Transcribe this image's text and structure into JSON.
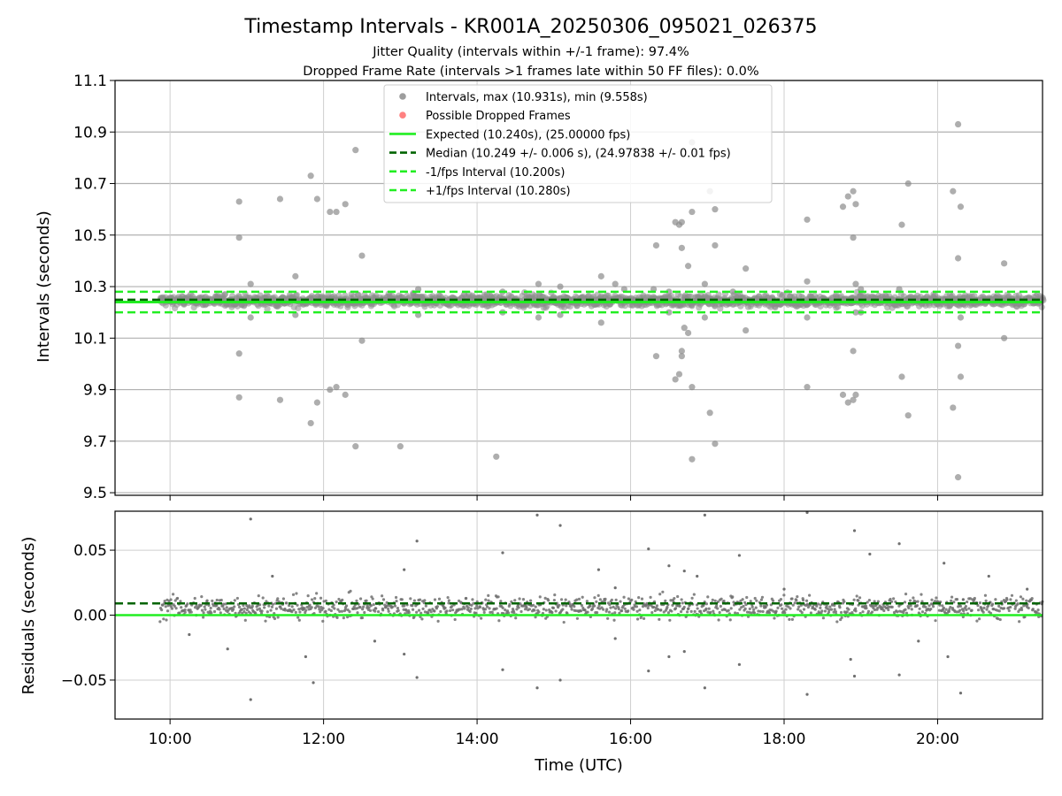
{
  "chart_data": [
    {
      "type": "scatter",
      "panel": "intervals",
      "title": "Timestamp Intervals - KR001A_20250306_095021_026375",
      "subtitle_lines": [
        "Jitter Quality (intervals within +/-1 frame): 97.4%",
        "Dropped Frame Rate (intervals >1 frames late within 50 FF files): 0.0%"
      ],
      "ylabel": "Intervals (seconds)",
      "xlabel": "",
      "xlim": [
        "09:17",
        "21:22"
      ],
      "ylim": [
        9.49,
        11.1
      ],
      "y_ticks": [
        "11.1",
        "10.9",
        "10.7",
        "10.5",
        "10.3",
        "10.1",
        "9.9",
        "9.7",
        "9.5"
      ],
      "grid": true,
      "legend": {
        "placement": "top-center",
        "entries": [
          {
            "label": "Intervals, max (10.931s), min (9.558s)",
            "marker": "circle",
            "color": "#8c8c8c"
          },
          {
            "label": "Possible Dropped Frames",
            "marker": "circle",
            "color": "#ff6b6b"
          },
          {
            "label": "Expected (10.240s), (25.00000 fps)",
            "line": "solid",
            "color": "#22ee22"
          },
          {
            "label": "Median (10.249 +/- 0.006 s), (24.97838 +/- 0.01 fps)",
            "line": "dashed",
            "color": "#006400"
          },
          {
            "label": "-1/fps Interval (10.200s)",
            "line": "dashed",
            "color": "#22ee22"
          },
          {
            "label": "+1/fps Interval (10.280s)",
            "line": "dashed",
            "color": "#22ee22"
          }
        ]
      },
      "reference_lines": {
        "expected": 10.24,
        "median": 10.249,
        "minus_1fps": 10.2,
        "plus_1fps": 10.28
      },
      "cluster": {
        "x_start": "09:52",
        "x_end": "21:22",
        "center": 10.245,
        "spread": 0.022
      },
      "series": [
        {
          "marker_color": "#8c8c8c",
          "points": [
            [
              "10:54",
              10.63
            ],
            [
              "10:54",
              10.49
            ],
            [
              "10:54",
              10.04
            ],
            [
              "10:54",
              9.87
            ],
            [
              "11:03",
              10.31
            ],
            [
              "11:03",
              10.18
            ],
            [
              "11:26",
              10.64
            ],
            [
              "11:26",
              9.86
            ],
            [
              "11:38",
              10.34
            ],
            [
              "11:38",
              10.19
            ],
            [
              "11:50",
              10.73
            ],
            [
              "11:50",
              9.77
            ],
            [
              "11:55",
              10.64
            ],
            [
              "11:55",
              9.85
            ],
            [
              "12:05",
              10.59
            ],
            [
              "12:05",
              9.9
            ],
            [
              "12:10",
              10.59
            ],
            [
              "12:10",
              9.91
            ],
            [
              "12:17",
              10.62
            ],
            [
              "12:17",
              9.88
            ],
            [
              "12:25",
              10.83
            ],
            [
              "12:25",
              9.68
            ],
            [
              "12:30",
              10.42
            ],
            [
              "12:30",
              10.09
            ],
            [
              "13:00",
              9.68
            ],
            [
              "13:10",
              10.27
            ],
            [
              "13:14",
              10.29
            ],
            [
              "13:14",
              10.19
            ],
            [
              "14:15",
              9.64
            ],
            [
              "14:20",
              10.28
            ],
            [
              "14:20",
              10.2
            ],
            [
              "14:48",
              10.31
            ],
            [
              "14:48",
              10.18
            ],
            [
              "15:05",
              10.3
            ],
            [
              "15:05",
              10.19
            ],
            [
              "15:37",
              10.34
            ],
            [
              "15:37",
              10.16
            ],
            [
              "15:48",
              10.31
            ],
            [
              "16:18",
              10.29
            ],
            [
              "16:20",
              10.46
            ],
            [
              "16:20",
              10.03
            ],
            [
              "16:30",
              10.28
            ],
            [
              "16:30",
              10.2
            ],
            [
              "16:35",
              10.55
            ],
            [
              "16:35",
              9.94
            ],
            [
              "16:38",
              10.54
            ],
            [
              "16:38",
              9.96
            ],
            [
              "16:40",
              10.55
            ],
            [
              "16:40",
              10.45
            ],
            [
              "16:40",
              10.05
            ],
            [
              "16:40",
              10.03
            ],
            [
              "16:42",
              10.14
            ],
            [
              "16:45",
              10.38
            ],
            [
              "16:45",
              10.12
            ],
            [
              "16:48",
              10.59
            ],
            [
              "16:48",
              10.86
            ],
            [
              "16:48",
              9.91
            ],
            [
              "16:48",
              9.63
            ],
            [
              "16:58",
              10.31
            ],
            [
              "16:58",
              10.18
            ],
            [
              "17:02",
              10.67
            ],
            [
              "17:02",
              9.81
            ],
            [
              "17:06",
              10.6
            ],
            [
              "17:06",
              10.46
            ],
            [
              "17:06",
              9.69
            ],
            [
              "17:20",
              10.28
            ],
            [
              "17:30",
              10.37
            ],
            [
              "17:30",
              10.13
            ],
            [
              "18:18",
              10.56
            ],
            [
              "18:18",
              10.32
            ],
            [
              "18:18",
              10.18
            ],
            [
              "18:18",
              9.91
            ],
            [
              "18:46",
              10.61
            ],
            [
              "18:46",
              9.88
            ],
            [
              "18:50",
              10.65
            ],
            [
              "18:50",
              9.85
            ],
            [
              "18:54",
              10.67
            ],
            [
              "18:54",
              10.49
            ],
            [
              "18:54",
              10.05
            ],
            [
              "18:54",
              9.86
            ],
            [
              "18:56",
              10.62
            ],
            [
              "18:56",
              10.31
            ],
            [
              "18:56",
              10.2
            ],
            [
              "18:56",
              9.88
            ],
            [
              "19:00",
              10.29
            ],
            [
              "19:00",
              10.2
            ],
            [
              "19:32",
              10.54
            ],
            [
              "19:32",
              9.95
            ],
            [
              "19:37",
              10.7
            ],
            [
              "19:37",
              9.8
            ],
            [
              "20:12",
              10.67
            ],
            [
              "20:12",
              9.83
            ],
            [
              "20:16",
              10.93
            ],
            [
              "20:16",
              10.41
            ],
            [
              "20:16",
              10.07
            ],
            [
              "20:16",
              9.56
            ],
            [
              "20:18",
              10.61
            ],
            [
              "20:18",
              10.18
            ],
            [
              "20:18",
              9.95
            ],
            [
              "20:52",
              10.39
            ],
            [
              "20:52",
              10.1
            ],
            [
              "19:30",
              10.29
            ],
            [
              "15:55",
              10.29
            ],
            [
              "13:50",
              10.27
            ]
          ]
        }
      ]
    },
    {
      "type": "scatter",
      "panel": "residuals",
      "ylabel": "Residuals (seconds)",
      "xlabel": "Time (UTC)",
      "xlim": [
        "09:17",
        "21:22"
      ],
      "ylim": [
        -0.08,
        0.08
      ],
      "x_ticks": [
        "10:00",
        "12:00",
        "14:00",
        "16:00",
        "18:00",
        "20:00"
      ],
      "y_ticks": [
        "0.05",
        "0.00",
        "−0.05"
      ],
      "grid": true,
      "reference_lines": {
        "zero": 0.0,
        "median_residual": 0.009
      },
      "cluster": {
        "x_start": "09:52",
        "x_end": "21:22",
        "center": 0.006,
        "spread": 0.008
      },
      "series": [
        {
          "marker_color": "#707070",
          "points": [
            [
              "11:03",
              0.074
            ],
            [
              "11:03",
              -0.065
            ],
            [
              "11:52",
              -0.052
            ],
            [
              "11:46",
              -0.032
            ],
            [
              "13:03",
              0.035
            ],
            [
              "13:03",
              -0.03
            ],
            [
              "13:13",
              0.057
            ],
            [
              "13:13",
              -0.048
            ],
            [
              "14:20",
              0.048
            ],
            [
              "14:20",
              -0.042
            ],
            [
              "14:47",
              0.077
            ],
            [
              "14:47",
              -0.056
            ],
            [
              "15:05",
              0.069
            ],
            [
              "15:05",
              -0.05
            ],
            [
              "15:48",
              0.021
            ],
            [
              "15:48",
              -0.018
            ],
            [
              "16:14",
              0.051
            ],
            [
              "16:14",
              -0.043
            ],
            [
              "16:30",
              0.038
            ],
            [
              "16:30",
              -0.032
            ],
            [
              "16:42",
              0.034
            ],
            [
              "16:42",
              -0.028
            ],
            [
              "16:58",
              0.077
            ],
            [
              "16:58",
              -0.056
            ],
            [
              "17:25",
              0.046
            ],
            [
              "17:25",
              -0.038
            ],
            [
              "18:00",
              0.02
            ],
            [
              "18:18",
              0.079
            ],
            [
              "18:18",
              -0.061
            ],
            [
              "18:55",
              0.065
            ],
            [
              "18:55",
              -0.047
            ],
            [
              "18:52",
              -0.034
            ],
            [
              "19:07",
              0.047
            ],
            [
              "19:30",
              0.055
            ],
            [
              "19:30",
              -0.046
            ],
            [
              "20:05",
              0.04
            ],
            [
              "20:08",
              -0.032
            ],
            [
              "20:20",
              0.012
            ],
            [
              "20:18",
              -0.06
            ],
            [
              "20:40",
              0.03
            ],
            [
              "10:15",
              -0.015
            ],
            [
              "10:45",
              -0.026
            ],
            [
              "11:20",
              0.03
            ],
            [
              "12:40",
              -0.02
            ],
            [
              "15:35",
              0.035
            ],
            [
              "16:52",
              0.03
            ],
            [
              "19:45",
              -0.02
            ],
            [
              "21:10",
              0.02
            ]
          ]
        }
      ]
    }
  ]
}
